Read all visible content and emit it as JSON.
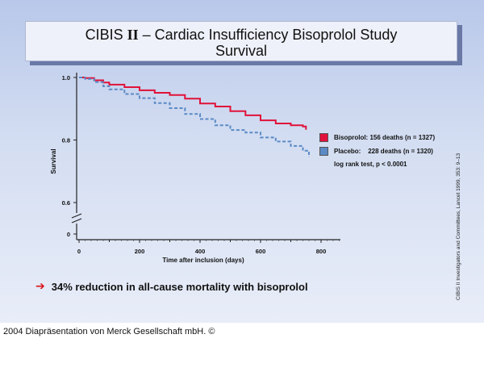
{
  "title": {
    "prefix": "CIBIS ",
    "roman": "II",
    "rest": "  –  Cardiac Insufficiency Bisoprolol Study",
    "line2": "Survival"
  },
  "chart_data": {
    "type": "line",
    "ylabel": "Survival",
    "xlabel": "Time after inclusion (days)",
    "x_ticks": [
      0,
      200,
      400,
      600,
      800
    ],
    "y_ticks": [
      "1.0",
      "0.8",
      "0.6",
      "0"
    ],
    "xlim": [
      0,
      800
    ],
    "ylim": [
      0.6,
      1.0
    ],
    "axis_break": true,
    "grid": false,
    "legend_position": "right",
    "series": [
      {
        "name": "Bisoprolol",
        "color": "#e0123a",
        "style": "solid",
        "x": [
          0,
          20,
          50,
          80,
          100,
          150,
          200,
          250,
          300,
          350,
          400,
          450,
          500,
          550,
          600,
          650,
          700,
          740,
          750
        ],
        "y": [
          1.0,
          0.998,
          0.991,
          0.984,
          0.977,
          0.969,
          0.959,
          0.951,
          0.944,
          0.932,
          0.917,
          0.907,
          0.892,
          0.879,
          0.863,
          0.853,
          0.847,
          0.843,
          0.833
        ]
      },
      {
        "name": "Placebo",
        "color": "#5b8ac5",
        "style": "dashed",
        "x": [
          0,
          20,
          50,
          80,
          100,
          150,
          200,
          250,
          300,
          350,
          400,
          450,
          500,
          550,
          600,
          650,
          700,
          740,
          760
        ],
        "y": [
          1.0,
          0.995,
          0.985,
          0.972,
          0.962,
          0.947,
          0.934,
          0.918,
          0.902,
          0.883,
          0.867,
          0.847,
          0.832,
          0.824,
          0.808,
          0.795,
          0.781,
          0.766,
          0.745
        ]
      }
    ]
  },
  "legend": {
    "bisoprolol_text": "Bisoprolol: 156 deaths (n = 1327)",
    "placebo_text": "Placebo:    228 deaths (n = 1320)",
    "bisoprolol_color": "#e0123a",
    "placebo_color": "#5b8ac5",
    "logrank": "log rank test, p < 0.0001"
  },
  "citation": "CIBIS II Investigators and Committees, Lancet 1999, 353: 9–13",
  "bottom_note": "34% reduction in all-cause mortality with bisoprolol",
  "footer": "2004 Diapräsentation von Merck Gesellschaft mbH. ©"
}
